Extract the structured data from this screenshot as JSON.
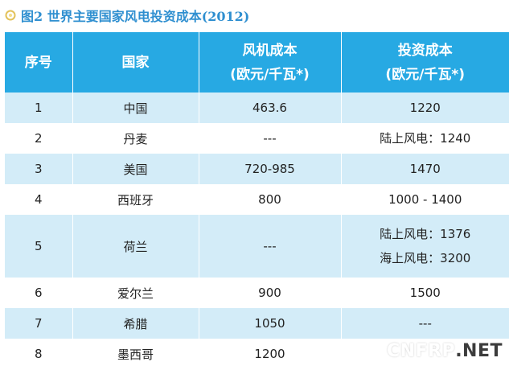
{
  "caption": {
    "icon": "ring-bullet-icon",
    "text": "图2  世界主要国家风电投资成本(2012)"
  },
  "table": {
    "headers": {
      "index": "序号",
      "country": "国家",
      "turbine_cost": [
        "风机成本",
        "(欧元/千瓦*)"
      ],
      "investment_cost": [
        "投资成本",
        "(欧元/千瓦*)"
      ]
    },
    "rows": [
      {
        "index": "1",
        "country": "中国",
        "turbine_cost": "463.6",
        "investment_cost": [
          "1220"
        ]
      },
      {
        "index": "2",
        "country": "丹麦",
        "turbine_cost": "---",
        "investment_cost": [
          "陆上风电：1240"
        ]
      },
      {
        "index": "3",
        "country": "美国",
        "turbine_cost": "720-985",
        "investment_cost": [
          "1470"
        ]
      },
      {
        "index": "4",
        "country": "西班牙",
        "turbine_cost": "800",
        "investment_cost": [
          "1000 - 1400"
        ]
      },
      {
        "index": "5",
        "country": "荷兰",
        "turbine_cost": "---",
        "investment_cost": [
          "陆上风电：1376",
          "海上风电：3200"
        ]
      },
      {
        "index": "6",
        "country": "爱尔兰",
        "turbine_cost": "900",
        "investment_cost": [
          "1500"
        ]
      },
      {
        "index": "7",
        "country": "希腊",
        "turbine_cost": "1050",
        "investment_cost": [
          "---"
        ]
      },
      {
        "index": "8",
        "country": "墨西哥",
        "turbine_cost": "1200",
        "investment_cost": [
          ""
        ]
      }
    ]
  },
  "watermark": {
    "part_a": "CNFRP",
    "part_b": ".NET"
  },
  "colors": {
    "header_bg": "#27a9e3",
    "stripe_bg": "#d3ecf8",
    "caption_text": "#2f8fd0"
  }
}
